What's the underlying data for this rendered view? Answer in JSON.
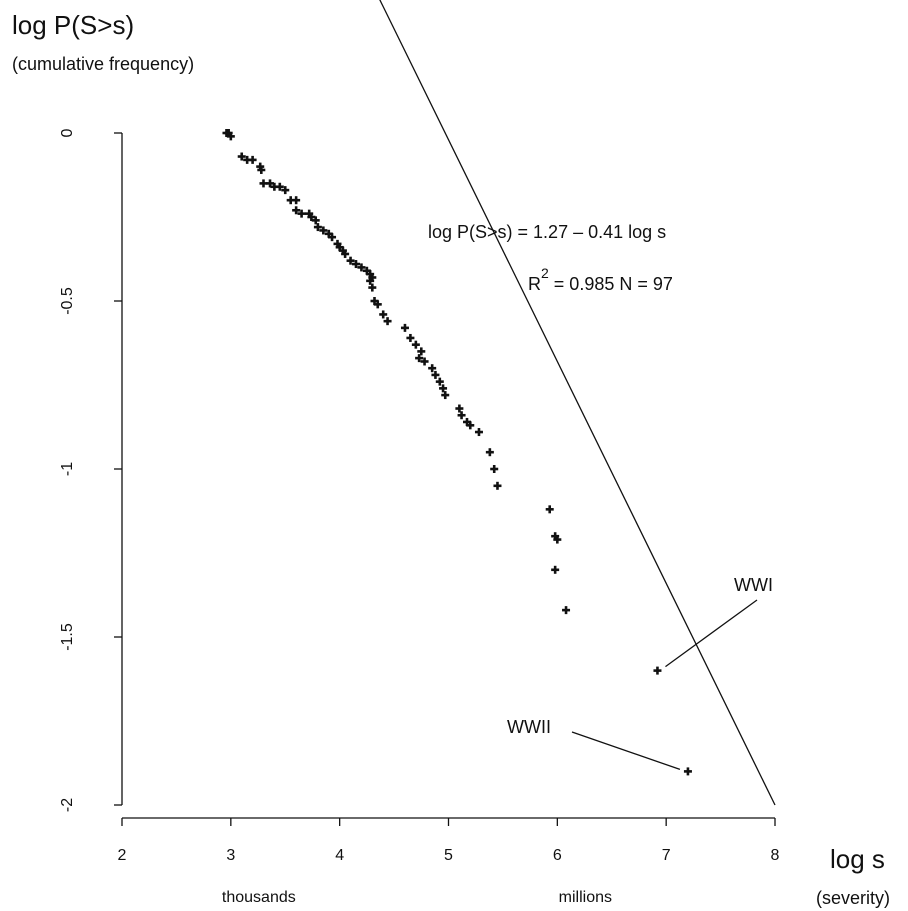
{
  "chart_data": {
    "type": "scatter",
    "title": "log P(S>s)",
    "subtitle": "(cumulative frequency)",
    "xlabel": "log s",
    "xlabel_sub": "(severity)",
    "ylabel": "",
    "xlim": [
      2,
      8
    ],
    "ylim": [
      -2,
      0
    ],
    "x_ticks": [
      "2",
      "3",
      "4",
      "5",
      "6",
      "7",
      "8"
    ],
    "y_ticks": [
      "0",
      "-0.5",
      "-1",
      "-1.5",
      "-2"
    ],
    "x_magnitude_labels": [
      {
        "x": 3,
        "text": "thousands"
      },
      {
        "x": 6,
        "text": "millions"
      }
    ],
    "grid": false,
    "regression": {
      "intercept": 1.27,
      "slope": -0.41,
      "equation": "log P(S>s) = 1.27 – 0.41 log s",
      "r2_label": "R",
      "r2_exp": "2",
      "r2_value": " = 0.985   N = 97"
    },
    "points": [
      {
        "x": 2.96,
        "y": 0.0
      },
      {
        "x": 2.98,
        "y": 0.0
      },
      {
        "x": 3.0,
        "y": -0.01
      },
      {
        "x": 3.1,
        "y": -0.07
      },
      {
        "x": 3.15,
        "y": -0.08
      },
      {
        "x": 3.2,
        "y": -0.08
      },
      {
        "x": 3.27,
        "y": -0.1
      },
      {
        "x": 3.28,
        "y": -0.11
      },
      {
        "x": 3.3,
        "y": -0.15
      },
      {
        "x": 3.36,
        "y": -0.15
      },
      {
        "x": 3.4,
        "y": -0.16
      },
      {
        "x": 3.45,
        "y": -0.16
      },
      {
        "x": 3.5,
        "y": -0.17
      },
      {
        "x": 3.55,
        "y": -0.2
      },
      {
        "x": 3.6,
        "y": -0.2
      },
      {
        "x": 3.6,
        "y": -0.23
      },
      {
        "x": 3.65,
        "y": -0.24
      },
      {
        "x": 3.72,
        "y": -0.24
      },
      {
        "x": 3.74,
        "y": -0.25
      },
      {
        "x": 3.78,
        "y": -0.26
      },
      {
        "x": 3.8,
        "y": -0.28
      },
      {
        "x": 3.85,
        "y": -0.29
      },
      {
        "x": 3.9,
        "y": -0.3
      },
      {
        "x": 3.93,
        "y": -0.31
      },
      {
        "x": 3.98,
        "y": -0.33
      },
      {
        "x": 4.0,
        "y": -0.34
      },
      {
        "x": 4.03,
        "y": -0.35
      },
      {
        "x": 4.05,
        "y": -0.36
      },
      {
        "x": 4.1,
        "y": -0.38
      },
      {
        "x": 4.15,
        "y": -0.39
      },
      {
        "x": 4.2,
        "y": -0.4
      },
      {
        "x": 4.25,
        "y": -0.41
      },
      {
        "x": 4.28,
        "y": -0.42
      },
      {
        "x": 4.3,
        "y": -0.43
      },
      {
        "x": 4.28,
        "y": -0.44
      },
      {
        "x": 4.3,
        "y": -0.46
      },
      {
        "x": 4.32,
        "y": -0.5
      },
      {
        "x": 4.35,
        "y": -0.51
      },
      {
        "x": 4.4,
        "y": -0.54
      },
      {
        "x": 4.44,
        "y": -0.56
      },
      {
        "x": 4.6,
        "y": -0.58
      },
      {
        "x": 4.65,
        "y": -0.61
      },
      {
        "x": 4.7,
        "y": -0.63
      },
      {
        "x": 4.75,
        "y": -0.65
      },
      {
        "x": 4.73,
        "y": -0.67
      },
      {
        "x": 4.78,
        "y": -0.68
      },
      {
        "x": 4.85,
        "y": -0.7
      },
      {
        "x": 4.88,
        "y": -0.72
      },
      {
        "x": 4.92,
        "y": -0.74
      },
      {
        "x": 4.95,
        "y": -0.76
      },
      {
        "x": 4.97,
        "y": -0.78
      },
      {
        "x": 5.1,
        "y": -0.82
      },
      {
        "x": 5.12,
        "y": -0.84
      },
      {
        "x": 5.17,
        "y": -0.86
      },
      {
        "x": 5.2,
        "y": -0.87
      },
      {
        "x": 5.28,
        "y": -0.89
      },
      {
        "x": 5.38,
        "y": -0.95
      },
      {
        "x": 5.42,
        "y": -1.0
      },
      {
        "x": 5.45,
        "y": -1.05
      },
      {
        "x": 5.93,
        "y": -1.12
      },
      {
        "x": 5.98,
        "y": -1.2
      },
      {
        "x": 6.0,
        "y": -1.21
      },
      {
        "x": 5.98,
        "y": -1.3
      },
      {
        "x": 6.08,
        "y": -1.42
      },
      {
        "x": 6.92,
        "y": -1.6
      },
      {
        "x": 7.2,
        "y": -1.9
      }
    ],
    "annotations": [
      {
        "text": "WWI",
        "x": 6.92,
        "y": -1.6
      },
      {
        "text": "WWII",
        "x": 7.2,
        "y": -1.9
      }
    ]
  }
}
